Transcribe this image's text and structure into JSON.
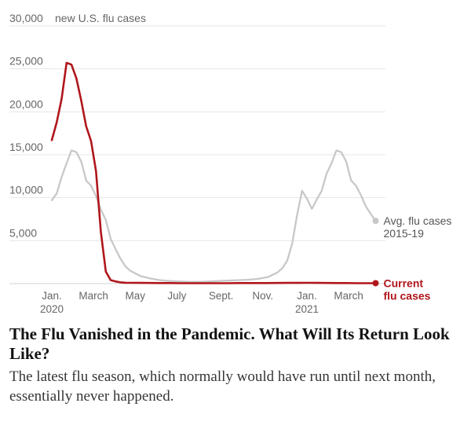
{
  "chart_data": {
    "type": "line",
    "unit_label": "new U.S. flu cases",
    "y_ticks": [
      5000,
      10000,
      15000,
      20000,
      25000,
      30000
    ],
    "y_tick_labels": [
      "5,000",
      "10,000",
      "15,000",
      "20,000",
      "25,000",
      "30,000"
    ],
    "ylim": [
      0,
      30000
    ],
    "xlim": [
      0,
      68
    ],
    "x_ticks": [
      {
        "x": 0,
        "lines": [
          "Jan.",
          "2020"
        ]
      },
      {
        "x": 8.5,
        "lines": [
          "March"
        ]
      },
      {
        "x": 17,
        "lines": [
          "May"
        ]
      },
      {
        "x": 25.5,
        "lines": [
          "July"
        ]
      },
      {
        "x": 34.5,
        "lines": [
          "Sept."
        ]
      },
      {
        "x": 43,
        "lines": [
          "Nov."
        ]
      },
      {
        "x": 52,
        "lines": [
          "Jan.",
          "2021"
        ]
      },
      {
        "x": 60.5,
        "lines": [
          "March"
        ]
      }
    ],
    "grid": true,
    "series": [
      {
        "name": "Avg. flu cases 2015-19",
        "label_lines": [
          "Avg. flu cases",
          "2015-19"
        ],
        "color": "#c8c8c8",
        "x": [
          0,
          1,
          2,
          3,
          4,
          5,
          6,
          7,
          8,
          9,
          10,
          11,
          12,
          13,
          14,
          15,
          16,
          18,
          20,
          22,
          24,
          26,
          28,
          30,
          32,
          34,
          36,
          38,
          40,
          42,
          44,
          46,
          47,
          48,
          49,
          50,
          51,
          52,
          53,
          54,
          55,
          56,
          57,
          58,
          59,
          60,
          61,
          62,
          63,
          64,
          65,
          66
        ],
        "y": [
          9700,
          10500,
          12400,
          14000,
          15500,
          15300,
          14200,
          12000,
          11400,
          10200,
          8600,
          7400,
          5200,
          4000,
          2900,
          2000,
          1500,
          900,
          600,
          400,
          300,
          250,
          200,
          200,
          250,
          300,
          350,
          400,
          450,
          550,
          750,
          1300,
          1800,
          2700,
          4700,
          8000,
          10800,
          9900,
          8700,
          9800,
          10800,
          12800,
          14000,
          15500,
          15300,
          14200,
          12000,
          11400,
          10300,
          9000,
          8100,
          7300
        ]
      },
      {
        "name": "Current flu cases",
        "label_lines": [
          "Current",
          "flu cases"
        ],
        "color": "#b0161c",
        "x": [
          0,
          1,
          2,
          3,
          4,
          5,
          6,
          7,
          8,
          9,
          10,
          11,
          12,
          13,
          14,
          15,
          16,
          18,
          20,
          22,
          24,
          26,
          28,
          30,
          32,
          34,
          36,
          38,
          40,
          42,
          44,
          46,
          48,
          50,
          52,
          54,
          56,
          58,
          60,
          62,
          64,
          66
        ],
        "y": [
          16700,
          18800,
          21500,
          25700,
          25500,
          23900,
          21300,
          18300,
          16600,
          13100,
          6000,
          1400,
          400,
          250,
          150,
          100,
          90,
          80,
          70,
          60,
          60,
          50,
          50,
          50,
          50,
          50,
          50,
          60,
          60,
          60,
          60,
          70,
          80,
          80,
          90,
          80,
          70,
          60,
          60,
          50,
          50,
          50
        ]
      }
    ]
  },
  "headline": "The Flu Vanished in the Pandemic. What Will Its Return Look Like?",
  "summary": "The latest flu season, which normally would have run until next month, essentially never happened."
}
